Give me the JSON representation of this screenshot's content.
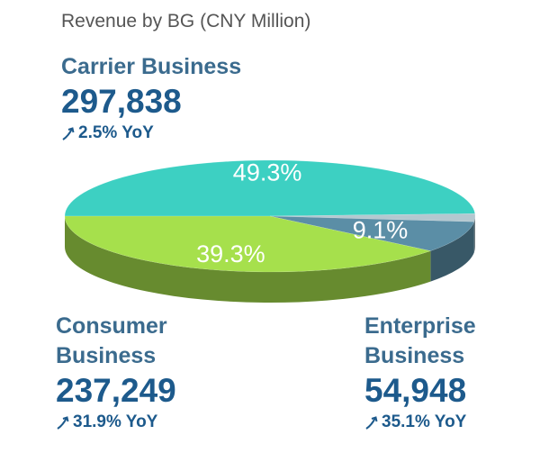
{
  "chart_data": {
    "type": "pie",
    "title": "Revenue by BG (CNY Million)",
    "categories": [
      "Carrier Business",
      null,
      "Enterprise Business",
      "Consumer Business"
    ],
    "values": [
      49.3,
      2.3,
      9.1,
      39.3
    ],
    "value_labels": [
      "49.3%",
      null,
      "9.1%",
      "39.3%"
    ],
    "colors": [
      "#3dd0c2",
      "#b4c8d0",
      "#5b8ea6",
      "#a6e04c"
    ],
    "revenue": [
      "297,838",
      null,
      "54,948",
      "237,249"
    ],
    "growth": [
      "2.5% YoY",
      null,
      "35.1% YoY",
      "31.9% YoY"
    ]
  }
}
